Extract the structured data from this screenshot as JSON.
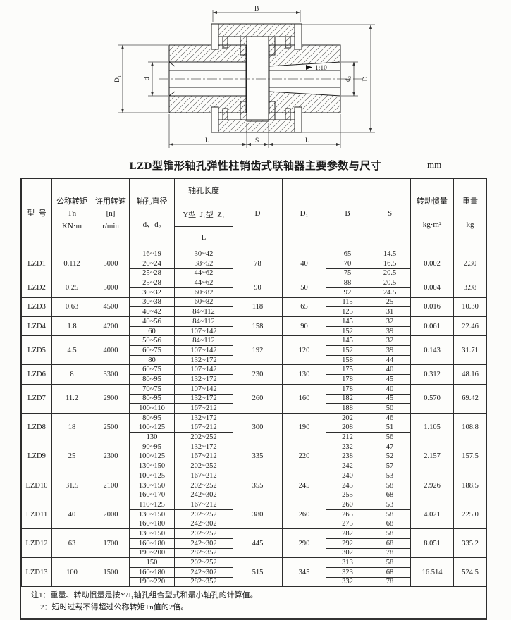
{
  "title": "LZD型锥形轴孔弹性柱销齿式联轴器主要参数与尺寸",
  "unit": "mm",
  "colors": {
    "ink": "#1b1b1b",
    "paper": "#fcfcfa",
    "line": "#2d2d2d"
  },
  "drawing": {
    "labels": {
      "B": "B",
      "D": "D",
      "D1": "D₁",
      "d": "d",
      "d2": "d₂",
      "L": "L",
      "S": "S",
      "taper": "1:10"
    }
  },
  "table": {
    "headers": {
      "model": "型  号",
      "torque": [
        "公称转矩",
        "Tn",
        "KN·m"
      ],
      "speed": [
        "许用转速",
        "[n]",
        "r/min"
      ],
      "bore_dia": [
        "轴孔直径",
        "d、d₂"
      ],
      "bore_len": [
        "轴孔长度",
        "Y型  J₁型  Z₁",
        "L"
      ],
      "D": "D",
      "D1": "D₁",
      "B": "B",
      "S": "S",
      "inertia": [
        "转动惯量",
        "kg·m²"
      ],
      "weight": [
        "重量",
        "kg"
      ]
    },
    "rows": [
      {
        "model": "LZD1",
        "torque": "0.112",
        "speed": "5000",
        "D": "78",
        "D1": "40",
        "inertia": "0.002",
        "weight": "2.30",
        "sub": [
          [
            "16~19",
            "30~42",
            "65",
            "14.5"
          ],
          [
            "20~24",
            "38~52",
            "70",
            "16.5"
          ],
          [
            "25~28",
            "44~62",
            "75",
            "20.5"
          ]
        ]
      },
      {
        "model": "LZD2",
        "torque": "0.25",
        "speed": "5000",
        "D": "90",
        "D1": "50",
        "inertia": "0.004",
        "weight": "3.98",
        "sub": [
          [
            "25~28",
            "44~62",
            "88",
            "20.5"
          ],
          [
            "30~32",
            "60~82",
            "92",
            "24.5"
          ]
        ]
      },
      {
        "model": "LZD3",
        "torque": "0.63",
        "speed": "4500",
        "D": "118",
        "D1": "65",
        "inertia": "0.016",
        "weight": "10.30",
        "sub": [
          [
            "30~38",
            "60~82",
            "115",
            "25"
          ],
          [
            "40~42",
            "84~112",
            "125",
            "31"
          ]
        ]
      },
      {
        "model": "LZD4",
        "torque": "1.8",
        "speed": "4200",
        "D": "158",
        "D1": "90",
        "inertia": "0.061",
        "weight": "22.46",
        "sub": [
          [
            "40~56",
            "84~112",
            "145",
            "32"
          ],
          [
            "60",
            "107~142",
            "152",
            "39"
          ]
        ]
      },
      {
        "model": "LZD5",
        "torque": "4.5",
        "speed": "4000",
        "D": "192",
        "D1": "120",
        "inertia": "0.143",
        "weight": "31.71",
        "sub": [
          [
            "50~56",
            "84~112",
            "145",
            "32"
          ],
          [
            "60~75",
            "107~142",
            "152",
            "39"
          ],
          [
            "80",
            "132~172",
            "158",
            "44"
          ]
        ]
      },
      {
        "model": "LZD6",
        "torque": "8",
        "speed": "3300",
        "D": "230",
        "D1": "130",
        "inertia": "0.312",
        "weight": "48.16",
        "sub": [
          [
            "60~75",
            "107~142",
            "175",
            "40"
          ],
          [
            "80~95",
            "132~172",
            "178",
            "45"
          ]
        ]
      },
      {
        "model": "LZD7",
        "torque": "11.2",
        "speed": "2900",
        "D": "260",
        "D1": "160",
        "inertia": "0.570",
        "weight": "69.42",
        "sub": [
          [
            "70~75",
            "107~142",
            "178",
            "40"
          ],
          [
            "80~95",
            "132~172",
            "182",
            "45"
          ],
          [
            "100~110",
            "167~212",
            "188",
            "50"
          ]
        ]
      },
      {
        "model": "LZD8",
        "torque": "18",
        "speed": "2500",
        "D": "300",
        "D1": "190",
        "inertia": "1.105",
        "weight": "108.8",
        "sub": [
          [
            "80~95",
            "132~172",
            "202",
            "46"
          ],
          [
            "100~125",
            "167~212",
            "208",
            "51"
          ],
          [
            "130",
            "202~252",
            "212",
            "56"
          ]
        ]
      },
      {
        "model": "LZD9",
        "torque": "25",
        "speed": "2300",
        "D": "335",
        "D1": "220",
        "inertia": "2.157",
        "weight": "157.5",
        "sub": [
          [
            "90~95",
            "132~172",
            "232",
            "47"
          ],
          [
            "100~125",
            "167~212",
            "238",
            "52"
          ],
          [
            "130~150",
            "202~252",
            "242",
            "57"
          ]
        ]
      },
      {
        "model": "LZD10",
        "torque": "31.5",
        "speed": "2100",
        "D": "355",
        "D1": "245",
        "inertia": "2.926",
        "weight": "188.5",
        "sub": [
          [
            "100~125",
            "167~212",
            "240",
            "53"
          ],
          [
            "130~150",
            "202~252",
            "245",
            "58"
          ],
          [
            "160~170",
            "242~302",
            "255",
            "68"
          ]
        ]
      },
      {
        "model": "LZD11",
        "torque": "40",
        "speed": "2000",
        "D": "380",
        "D1": "260",
        "inertia": "4.021",
        "weight": "225.0",
        "sub": [
          [
            "110~125",
            "167~212",
            "260",
            "53"
          ],
          [
            "130~150",
            "202~252",
            "265",
            "58"
          ],
          [
            "160~180",
            "242~302",
            "275",
            "68"
          ]
        ]
      },
      {
        "model": "LZD12",
        "torque": "63",
        "speed": "1700",
        "D": "445",
        "D1": "290",
        "inertia": "8.051",
        "weight": "335.2",
        "sub": [
          [
            "130~150",
            "202~252",
            "282",
            "58"
          ],
          [
            "160~180",
            "242~302",
            "292",
            "68"
          ],
          [
            "190~200",
            "282~352",
            "302",
            "78"
          ]
        ]
      },
      {
        "model": "LZD13",
        "torque": "100",
        "speed": "1500",
        "D": "515",
        "D1": "345",
        "inertia": "16.514",
        "weight": "524.5",
        "sub": [
          [
            "150",
            "202~252",
            "313",
            "58"
          ],
          [
            "160~180",
            "242~302",
            "323",
            "68"
          ],
          [
            "190~220",
            "282~352",
            "332",
            "78"
          ]
        ]
      }
    ]
  },
  "notes": [
    "注1：重量、转动惯量是按Y/J₁轴孔组合型式和最小轴孔的计算值。",
    "2：短时过载不得超过公称转矩Tn值的2倍。"
  ]
}
